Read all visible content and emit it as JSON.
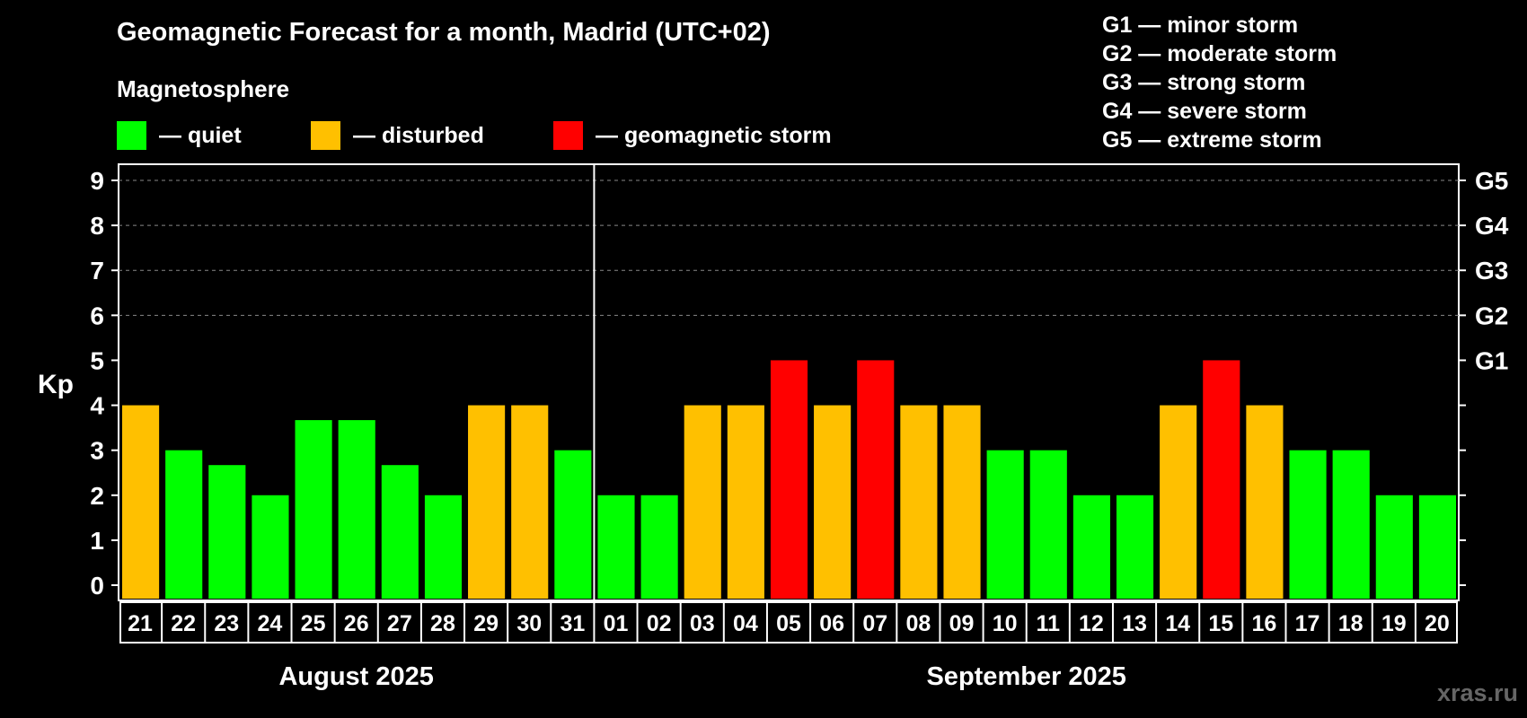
{
  "title": "Geomagnetic Forecast for a month, Madrid (UTC+02)",
  "subtitle": "Magnetosphere",
  "legend": [
    {
      "label": "— quiet",
      "color": "#00ff00"
    },
    {
      "label": "— disturbed",
      "color": "#ffc000"
    },
    {
      "label": "— geomagnetic storm",
      "color": "#ff0000"
    }
  ],
  "storm_scale": [
    "G1 — minor storm",
    "G2 — moderate storm",
    "G3 — strong storm",
    "G4 — severe storm",
    "G5 — extreme storm"
  ],
  "watermark": "xras.ru",
  "chart_data": {
    "type": "bar",
    "ylabel": "Kp",
    "ylim": [
      0,
      9
    ],
    "yticks": [
      0,
      1,
      2,
      3,
      4,
      5,
      6,
      7,
      8,
      9
    ],
    "right_labels": [
      {
        "value": 5,
        "label": "G1"
      },
      {
        "value": 6,
        "label": "G2"
      },
      {
        "value": 7,
        "label": "G3"
      },
      {
        "value": 8,
        "label": "G4"
      },
      {
        "value": 9,
        "label": "G5"
      }
    ],
    "categories": [
      "21",
      "22",
      "23",
      "24",
      "25",
      "26",
      "27",
      "28",
      "29",
      "30",
      "31",
      "01",
      "02",
      "03",
      "04",
      "05",
      "06",
      "07",
      "08",
      "09",
      "10",
      "11",
      "12",
      "13",
      "14",
      "15",
      "16",
      "17",
      "18",
      "19",
      "20"
    ],
    "values": [
      4,
      3,
      2.67,
      2,
      3.67,
      3.67,
      2.67,
      2,
      4,
      4,
      3,
      2,
      2,
      4,
      4,
      5,
      4,
      5,
      4,
      4,
      3,
      3,
      2,
      2,
      4,
      5,
      4,
      3,
      3,
      2,
      2
    ],
    "status": [
      "disturbed",
      "quiet",
      "quiet",
      "quiet",
      "quiet",
      "quiet",
      "quiet",
      "quiet",
      "disturbed",
      "disturbed",
      "quiet",
      "quiet",
      "quiet",
      "disturbed",
      "disturbed",
      "storm",
      "disturbed",
      "storm",
      "disturbed",
      "disturbed",
      "quiet",
      "quiet",
      "quiet",
      "quiet",
      "disturbed",
      "storm",
      "disturbed",
      "quiet",
      "quiet",
      "quiet",
      "quiet"
    ],
    "status_colors": {
      "quiet": "#00ff00",
      "disturbed": "#ffc000",
      "storm": "#ff0000"
    },
    "months": [
      {
        "label": "August 2025",
        "count": 11
      },
      {
        "label": "September 2025",
        "count": 20
      }
    ],
    "grid": true
  }
}
